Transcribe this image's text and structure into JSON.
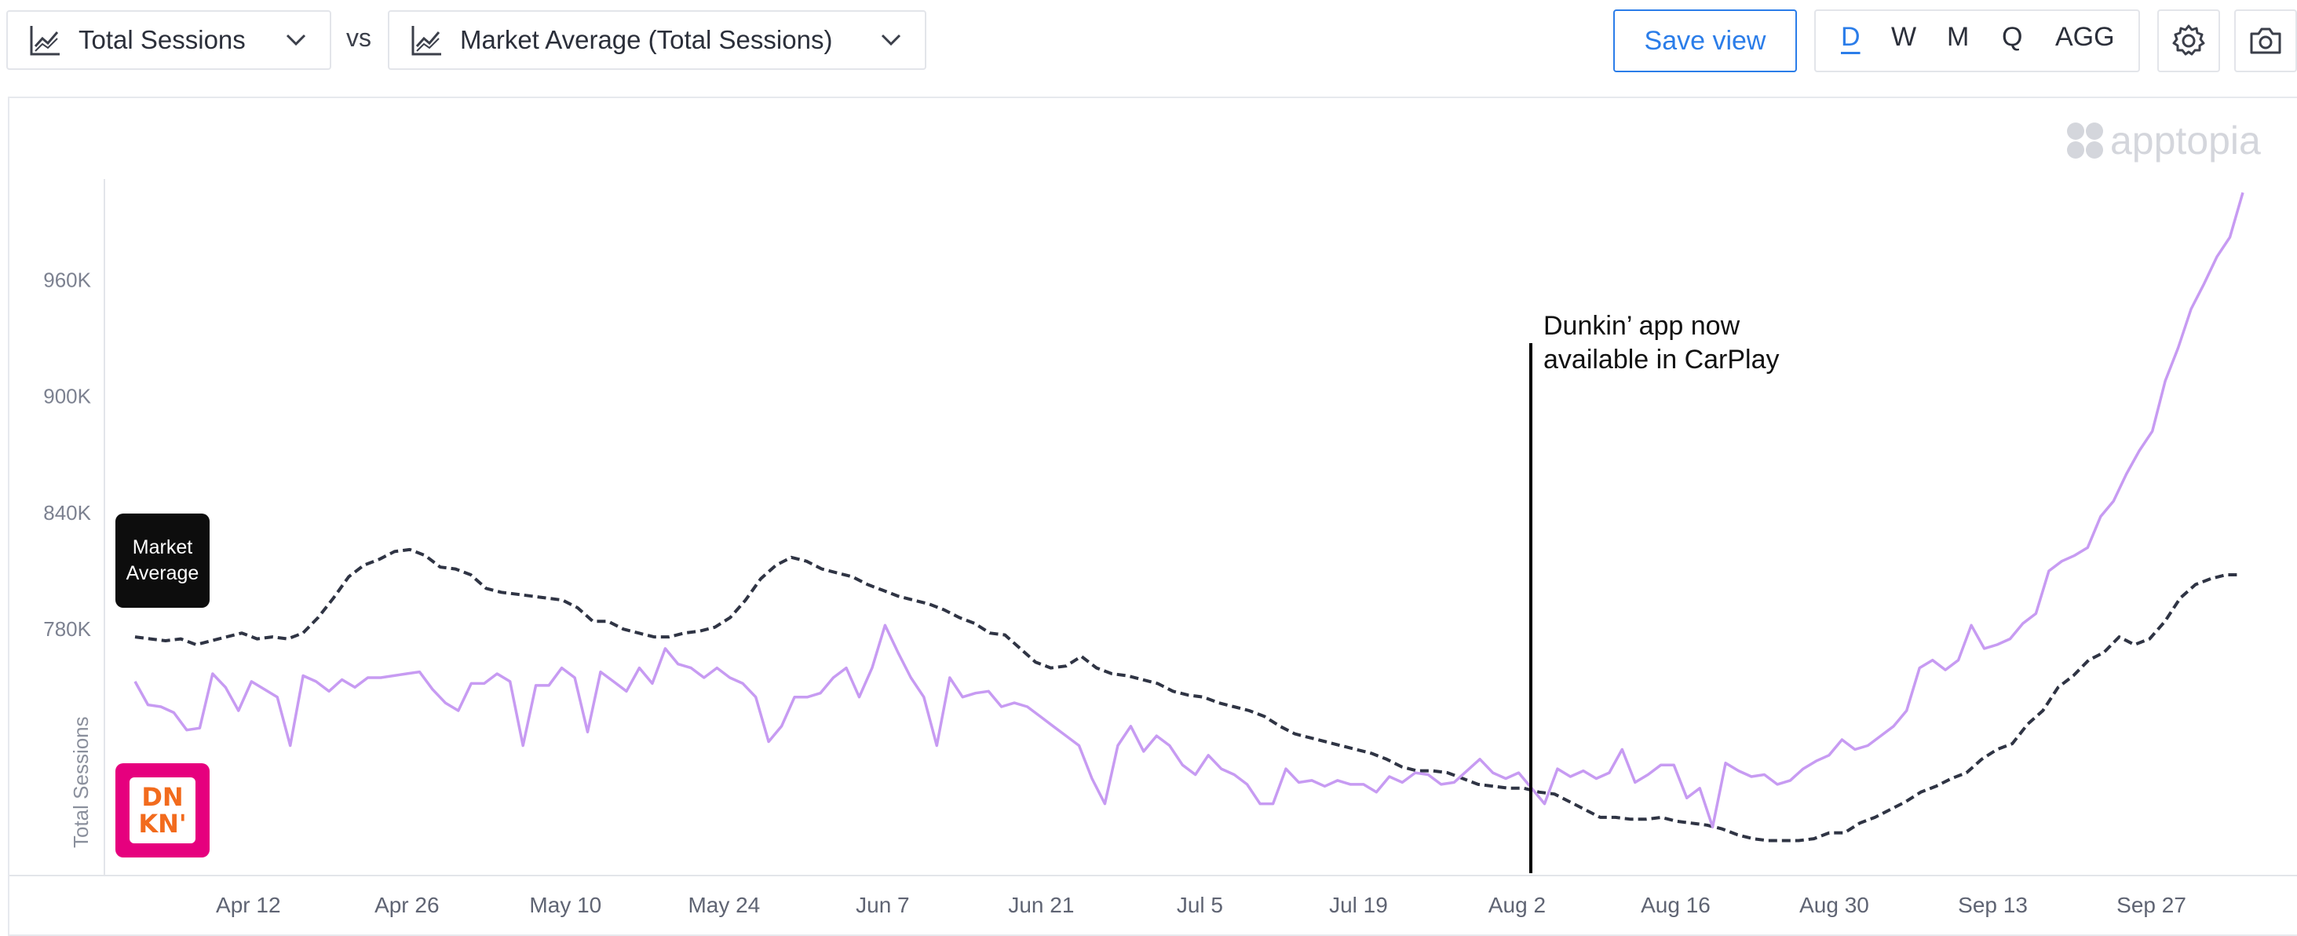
{
  "toolbar": {
    "metric_dropdown": "Total Sessions",
    "vs_label": "vs",
    "compare_dropdown": "Market Average (Total Sessions)",
    "save_view": "Save view",
    "periods": [
      "D",
      "W",
      "M",
      "Q",
      "AGG"
    ],
    "active_period": "D",
    "icons": [
      "line-chart-icon",
      "chevron-down-icon",
      "gear-icon",
      "camera-icon"
    ]
  },
  "brand": {
    "watermark": "apptopia"
  },
  "legend": {
    "market_label_line1": "Market",
    "market_label_line2": "Average",
    "app_logo_line1": "DN",
    "app_logo_line2": "KN'"
  },
  "colors": {
    "app_series": "#c79bf2",
    "market_series": "#2f3444",
    "accent": "#2b7de9",
    "app_brand": "#e6007e",
    "annotation": "#000000"
  },
  "chart_data": {
    "type": "line",
    "ylabel": "Total Sessions",
    "ylim": [
      653000,
      1012000
    ],
    "yticks": [
      780000,
      840000,
      900000,
      960000
    ],
    "ytick_labels": [
      "780K",
      "840K",
      "900K",
      "960K"
    ],
    "x_start": "Apr 2",
    "x_count": 183,
    "xtick_labels": [
      "Apr 12",
      "Apr 26",
      "May 10",
      "May 24",
      "Jun 7",
      "Jun 21",
      "Jul 5",
      "Jul 19",
      "Aug 2",
      "Aug 16",
      "Aug 30",
      "Sep 13",
      "Sep 27"
    ],
    "xtick_index": [
      10,
      24,
      38,
      52,
      66,
      80,
      94,
      108,
      122,
      136,
      150,
      164,
      178
    ],
    "annotation": {
      "index": 125,
      "line1": "Dunkin’ app now",
      "line2": "available in CarPlay"
    },
    "series": [
      {
        "name": "Dunkin'",
        "anchors": [
          [
            0,
            753
          ],
          [
            1,
            741
          ],
          [
            2,
            740
          ],
          [
            3,
            737
          ],
          [
            4,
            728
          ],
          [
            5,
            729
          ],
          [
            6,
            757
          ],
          [
            7,
            750
          ],
          [
            8,
            738
          ],
          [
            9,
            753
          ],
          [
            10,
            749
          ],
          [
            11,
            745
          ],
          [
            12,
            720
          ],
          [
            13,
            756
          ],
          [
            14,
            753
          ],
          [
            15,
            748
          ],
          [
            16,
            754
          ],
          [
            17,
            750
          ],
          [
            18,
            755
          ],
          [
            19,
            755
          ],
          [
            20,
            756
          ],
          [
            21,
            757
          ],
          [
            22,
            758
          ],
          [
            23,
            749
          ],
          [
            24,
            742
          ],
          [
            25,
            738
          ],
          [
            26,
            752
          ],
          [
            27,
            752
          ],
          [
            28,
            757
          ],
          [
            29,
            753
          ],
          [
            30,
            720
          ],
          [
            31,
            751
          ],
          [
            32,
            751
          ],
          [
            33,
            760
          ],
          [
            34,
            755
          ],
          [
            35,
            727
          ],
          [
            36,
            758
          ],
          [
            37,
            753
          ],
          [
            38,
            748
          ],
          [
            39,
            760
          ],
          [
            40,
            752
          ],
          [
            41,
            770
          ],
          [
            42,
            762
          ],
          [
            43,
            760
          ],
          [
            44,
            755
          ],
          [
            45,
            760
          ],
          [
            46,
            755
          ],
          [
            47,
            752
          ],
          [
            48,
            745
          ],
          [
            49,
            722
          ],
          [
            50,
            730
          ],
          [
            51,
            745
          ],
          [
            52,
            745
          ],
          [
            53,
            747
          ],
          [
            54,
            755
          ],
          [
            55,
            760
          ],
          [
            56,
            745
          ],
          [
            57,
            760
          ],
          [
            58,
            782
          ],
          [
            59,
            768
          ],
          [
            60,
            755
          ],
          [
            61,
            745
          ],
          [
            62,
            720
          ],
          [
            63,
            755
          ],
          [
            64,
            745
          ],
          [
            65,
            747
          ],
          [
            66,
            748
          ],
          [
            67,
            740
          ],
          [
            68,
            742
          ],
          [
            69,
            740
          ],
          [
            70,
            735
          ],
          [
            71,
            730
          ],
          [
            72,
            725
          ],
          [
            73,
            720
          ],
          [
            74,
            703
          ],
          [
            75,
            690
          ],
          [
            76,
            720
          ],
          [
            77,
            730
          ],
          [
            78,
            717
          ],
          [
            79,
            725
          ],
          [
            80,
            720
          ],
          [
            81,
            710
          ],
          [
            82,
            705
          ],
          [
            83,
            715
          ],
          [
            84,
            708
          ],
          [
            85,
            705
          ],
          [
            86,
            700
          ],
          [
            87,
            690
          ],
          [
            88,
            690
          ],
          [
            89,
            708
          ],
          [
            90,
            701
          ],
          [
            91,
            702
          ],
          [
            92,
            699
          ],
          [
            93,
            702
          ],
          [
            94,
            700
          ],
          [
            95,
            700
          ],
          [
            96,
            696
          ],
          [
            97,
            704
          ],
          [
            98,
            701
          ],
          [
            99,
            706
          ],
          [
            100,
            705
          ],
          [
            101,
            700
          ],
          [
            102,
            701
          ],
          [
            103,
            707
          ],
          [
            104,
            713
          ],
          [
            105,
            706
          ],
          [
            106,
            703
          ],
          [
            107,
            706
          ],
          [
            108,
            698
          ],
          [
            109,
            690
          ],
          [
            110,
            708
          ],
          [
            111,
            704
          ],
          [
            112,
            707
          ],
          [
            113,
            703
          ],
          [
            114,
            706
          ],
          [
            115,
            718
          ],
          [
            116,
            701
          ],
          [
            117,
            705
          ],
          [
            118,
            710
          ],
          [
            119,
            710
          ],
          [
            120,
            693
          ],
          [
            121,
            698
          ],
          [
            122,
            678
          ],
          [
            123,
            711
          ],
          [
            124,
            707
          ],
          [
            125,
            704
          ],
          [
            126,
            705
          ],
          [
            127,
            700
          ],
          [
            128,
            702
          ],
          [
            129,
            708
          ],
          [
            130,
            712
          ],
          [
            131,
            715
          ],
          [
            132,
            723
          ],
          [
            133,
            718
          ],
          [
            134,
            720
          ],
          [
            135,
            725
          ],
          [
            136,
            730
          ],
          [
            137,
            738
          ],
          [
            138,
            760
          ],
          [
            139,
            764
          ],
          [
            140,
            759
          ],
          [
            141,
            764
          ],
          [
            142,
            782
          ],
          [
            143,
            770
          ],
          [
            144,
            772
          ],
          [
            145,
            775
          ],
          [
            146,
            783
          ],
          [
            147,
            788
          ],
          [
            148,
            810
          ],
          [
            149,
            815
          ],
          [
            150,
            818
          ],
          [
            151,
            822
          ],
          [
            152,
            838
          ],
          [
            153,
            846
          ],
          [
            154,
            860
          ],
          [
            155,
            872
          ],
          [
            156,
            882
          ],
          [
            157,
            908
          ],
          [
            158,
            925
          ],
          [
            159,
            945
          ],
          [
            160,
            958
          ],
          [
            161,
            972
          ],
          [
            162,
            982
          ],
          [
            163,
            1005
          ]
        ]
      },
      {
        "name": "Market Average",
        "anchors": [
          [
            0,
            776
          ],
          [
            1,
            775
          ],
          [
            2,
            774
          ],
          [
            3,
            775
          ],
          [
            4,
            772
          ],
          [
            5,
            774
          ],
          [
            6,
            776
          ],
          [
            7,
            778
          ],
          [
            8,
            775
          ],
          [
            9,
            776
          ],
          [
            10,
            775
          ],
          [
            11,
            778
          ],
          [
            12,
            786
          ],
          [
            13,
            796
          ],
          [
            14,
            807
          ],
          [
            15,
            813
          ],
          [
            16,
            816
          ],
          [
            17,
            820
          ],
          [
            18,
            821
          ],
          [
            19,
            818
          ],
          [
            20,
            812
          ],
          [
            21,
            811
          ],
          [
            22,
            808
          ],
          [
            23,
            801
          ],
          [
            24,
            799
          ],
          [
            25,
            798
          ],
          [
            26,
            797
          ],
          [
            27,
            796
          ],
          [
            28,
            795
          ],
          [
            29,
            791
          ],
          [
            30,
            784
          ],
          [
            31,
            784
          ],
          [
            32,
            780
          ],
          [
            33,
            778
          ],
          [
            34,
            776
          ],
          [
            35,
            776
          ],
          [
            36,
            778
          ],
          [
            37,
            779
          ],
          [
            38,
            781
          ],
          [
            39,
            786
          ],
          [
            40,
            795
          ],
          [
            41,
            806
          ],
          [
            42,
            813
          ],
          [
            43,
            817
          ],
          [
            44,
            815
          ],
          [
            45,
            811
          ],
          [
            46,
            809
          ],
          [
            47,
            807
          ],
          [
            48,
            803
          ],
          [
            49,
            800
          ],
          [
            50,
            797
          ],
          [
            51,
            795
          ],
          [
            52,
            793
          ],
          [
            53,
            790
          ],
          [
            54,
            786
          ],
          [
            55,
            783
          ],
          [
            56,
            778
          ],
          [
            57,
            777
          ],
          [
            58,
            770
          ],
          [
            59,
            763
          ],
          [
            60,
            760
          ],
          [
            61,
            761
          ],
          [
            62,
            766
          ],
          [
            63,
            760
          ],
          [
            64,
            757
          ],
          [
            65,
            756
          ],
          [
            66,
            754
          ],
          [
            67,
            752
          ],
          [
            68,
            748
          ],
          [
            69,
            746
          ],
          [
            70,
            745
          ],
          [
            71,
            742
          ],
          [
            72,
            740
          ],
          [
            73,
            738
          ],
          [
            74,
            735
          ],
          [
            75,
            730
          ],
          [
            76,
            726
          ],
          [
            77,
            724
          ],
          [
            78,
            722
          ],
          [
            79,
            720
          ],
          [
            80,
            718
          ],
          [
            81,
            716
          ],
          [
            82,
            713
          ],
          [
            83,
            709
          ],
          [
            84,
            707
          ],
          [
            85,
            707
          ],
          [
            86,
            706
          ],
          [
            87,
            703
          ],
          [
            88,
            700
          ],
          [
            89,
            699
          ],
          [
            90,
            698
          ],
          [
            91,
            698
          ],
          [
            92,
            696
          ],
          [
            93,
            695
          ],
          [
            94,
            691
          ],
          [
            95,
            687
          ],
          [
            96,
            683
          ],
          [
            97,
            683
          ],
          [
            98,
            682
          ],
          [
            99,
            682
          ],
          [
            100,
            683
          ],
          [
            101,
            681
          ],
          [
            102,
            680
          ],
          [
            103,
            679
          ],
          [
            104,
            677
          ],
          [
            105,
            674
          ],
          [
            106,
            672
          ],
          [
            107,
            671
          ],
          [
            108,
            671
          ],
          [
            109,
            671
          ],
          [
            110,
            672
          ],
          [
            111,
            675
          ],
          [
            112,
            675
          ],
          [
            113,
            680
          ],
          [
            114,
            683
          ],
          [
            115,
            687
          ],
          [
            116,
            691
          ],
          [
            117,
            696
          ],
          [
            118,
            699
          ],
          [
            119,
            703
          ],
          [
            120,
            706
          ],
          [
            121,
            713
          ],
          [
            122,
            718
          ],
          [
            123,
            721
          ],
          [
            124,
            731
          ],
          [
            125,
            738
          ],
          [
            126,
            750
          ],
          [
            127,
            756
          ],
          [
            128,
            764
          ],
          [
            129,
            768
          ],
          [
            130,
            776
          ],
          [
            131,
            772
          ],
          [
            132,
            775
          ],
          [
            133,
            784
          ],
          [
            134,
            796
          ],
          [
            135,
            803
          ],
          [
            136,
            806
          ],
          [
            137,
            808
          ],
          [
            138,
            808
          ]
        ]
      }
    ]
  }
}
